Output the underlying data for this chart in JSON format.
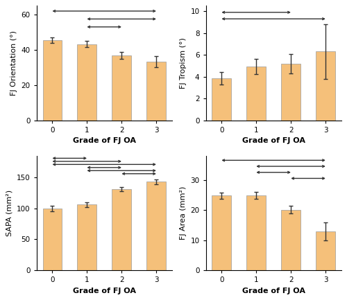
{
  "subplots": [
    {
      "ylabel": "FJ Orientation (°)",
      "xlabel": "Grade of FJ OA",
      "values": [
        45.5,
        43.2,
        36.8,
        33.2
      ],
      "errors": [
        1.5,
        1.8,
        2.0,
        3.2
      ],
      "ylim": [
        0,
        65
      ],
      "yticks": [
        0,
        20,
        40,
        60
      ],
      "significance_lines": [
        [
          0,
          3,
          62
        ],
        [
          1,
          3,
          57.5
        ],
        [
          1,
          2,
          53
        ]
      ]
    },
    {
      "ylabel": "FJ Tropism (°)",
      "xlabel": "Grade of FJ OA",
      "values": [
        3.85,
        4.9,
        5.2,
        6.3
      ],
      "errors": [
        0.6,
        0.7,
        0.9,
        2.5
      ],
      "ylim": [
        0,
        10.5
      ],
      "yticks": [
        0,
        2,
        4,
        6,
        8,
        10
      ],
      "significance_lines": [
        [
          0,
          2,
          9.9
        ],
        [
          0,
          3,
          9.3
        ]
      ]
    },
    {
      "ylabel": "SAPA (mm²)",
      "xlabel": "Grade of FJ OA",
      "values": [
        100,
        106,
        131,
        143
      ],
      "errors": [
        4.5,
        4.0,
        3.5,
        4.0
      ],
      "ylim": [
        0,
        185
      ],
      "yticks": [
        0,
        50,
        100,
        150
      ],
      "significance_lines": [
        [
          0,
          1,
          181
        ],
        [
          0,
          2,
          176
        ],
        [
          0,
          3,
          171
        ],
        [
          1,
          2,
          166
        ],
        [
          1,
          3,
          161
        ],
        [
          2,
          3,
          156
        ]
      ]
    },
    {
      "ylabel": "FJ Area (mm²)",
      "xlabel": "Grade of FJ OA",
      "values": [
        24.8,
        24.8,
        20.1,
        13.0
      ],
      "errors": [
        1.0,
        1.2,
        1.2,
        3.0
      ],
      "ylim": [
        0,
        38
      ],
      "yticks": [
        0,
        10,
        20,
        30
      ],
      "significance_lines": [
        [
          0,
          3,
          36.5
        ],
        [
          1,
          3,
          34.5
        ],
        [
          1,
          2,
          32.5
        ],
        [
          2,
          3,
          30.5
        ]
      ]
    }
  ],
  "bar_color": "#F5C07A",
  "bar_edge_color": "#999999",
  "bar_edge_width": 0.5,
  "bar_width": 0.55,
  "error_color": "#333333",
  "error_capsize": 2.5,
  "error_linewidth": 1.0,
  "sig_line_color": "#333333",
  "sig_line_lw": 1.0,
  "xlabel_fontsize": 8,
  "ylabel_fontsize": 8,
  "tick_fontsize": 7.5,
  "background_color": "#ffffff",
  "x_categories": [
    "0",
    "1",
    "2",
    "3"
  ]
}
